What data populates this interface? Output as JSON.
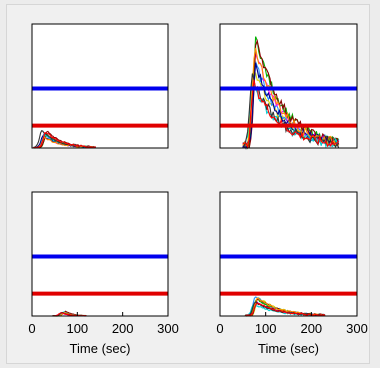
{
  "chart_data": [
    {
      "type": "line",
      "panel": "top-left",
      "xlim": [
        0,
        300
      ],
      "ylim": [
        0,
        1
      ],
      "blue_threshold": 0.48,
      "red_threshold": 0.18,
      "trace_peak": 0.14,
      "trace_peak_x": 28,
      "trace_tail_end_x": 140,
      "xlabel": "",
      "x_ticks": []
    },
    {
      "type": "line",
      "panel": "top-right",
      "xlim": [
        0,
        300
      ],
      "ylim": [
        0,
        1
      ],
      "blue_threshold": 0.48,
      "red_threshold": 0.18,
      "trace_peak": 0.9,
      "trace_peak_x": 75,
      "trace_tail_end_x": 260,
      "xlabel": "",
      "x_ticks": []
    },
    {
      "type": "line",
      "panel": "bottom-left",
      "xlim": [
        0,
        300
      ],
      "ylim": [
        0,
        1
      ],
      "blue_threshold": 0.48,
      "red_threshold": 0.18,
      "trace_peak": 0.04,
      "trace_peak_x": 70,
      "trace_tail_end_x": 120,
      "xlabel": "Time (sec)",
      "x_ticks": [
        "0",
        "100",
        "200",
        "300"
      ]
    },
    {
      "type": "line",
      "panel": "bottom-right",
      "xlim": [
        0,
        300
      ],
      "ylim": [
        0,
        1
      ],
      "blue_threshold": 0.48,
      "red_threshold": 0.18,
      "trace_peak": 0.16,
      "trace_peak_x": 80,
      "trace_tail_end_x": 230,
      "xlabel": "Time (sec)",
      "x_ticks": [
        "0",
        "100",
        "200",
        "300"
      ]
    }
  ],
  "colors": {
    "blue_line": "#0000ee",
    "red_line": "#e00000",
    "trace_palette": [
      "#d4d400",
      "#1e90ff",
      "#ff00ff",
      "#00b000",
      "#8b0000",
      "#00008b",
      "#00ced1",
      "#ff8c00",
      "#333333",
      "#ff0000"
    ]
  }
}
